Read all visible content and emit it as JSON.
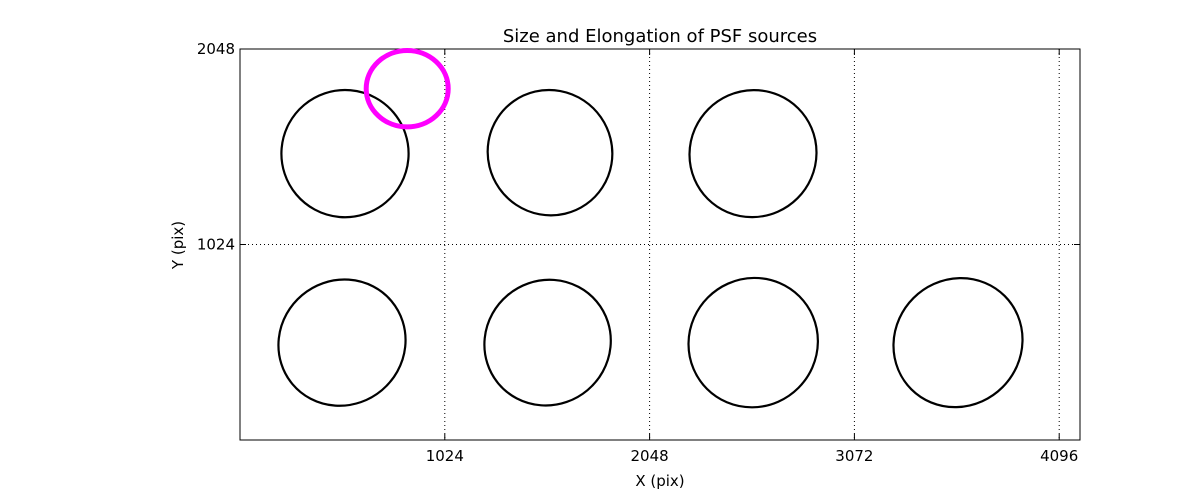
{
  "chart_data": {
    "type": "scatter",
    "title": "Size and Elongation of PSF sources",
    "xlabel": "X (pix)",
    "ylabel": "Y (pix)",
    "xlim": [
      0,
      4200
    ],
    "ylim": [
      0,
      2048
    ],
    "xticks": [
      {
        "value": 1024,
        "label": "1024"
      },
      {
        "value": 2048,
        "label": "2048"
      },
      {
        "value": 3072,
        "label": "3072"
      },
      {
        "value": 4096,
        "label": "4096"
      }
    ],
    "yticks": [
      {
        "value": 1024,
        "label": "1024"
      },
      {
        "value": 2048,
        "label": "2048"
      }
    ],
    "grid": true,
    "reference_circle": {
      "x": 836,
      "y": 1840,
      "rx": 205,
      "ry": 200,
      "color": "#ff00ff"
    },
    "ellipses": [
      {
        "x": 525,
        "y": 1500,
        "rx": 318,
        "ry": 333,
        "angle": -40
      },
      {
        "x": 1550,
        "y": 1505,
        "rx": 310,
        "ry": 330,
        "angle": -35
      },
      {
        "x": 2565,
        "y": 1500,
        "rx": 320,
        "ry": 330,
        "angle": -45
      },
      {
        "x": 510,
        "y": 510,
        "rx": 323,
        "ry": 325,
        "angle": -40
      },
      {
        "x": 1538,
        "y": 510,
        "rx": 320,
        "ry": 325,
        "angle": -40
      },
      {
        "x": 2566,
        "y": 510,
        "rx": 327,
        "ry": 335,
        "angle": -45
      },
      {
        "x": 3590,
        "y": 510,
        "rx": 330,
        "ry": 330,
        "angle": -45
      }
    ],
    "ellipse_color": "#000000"
  }
}
